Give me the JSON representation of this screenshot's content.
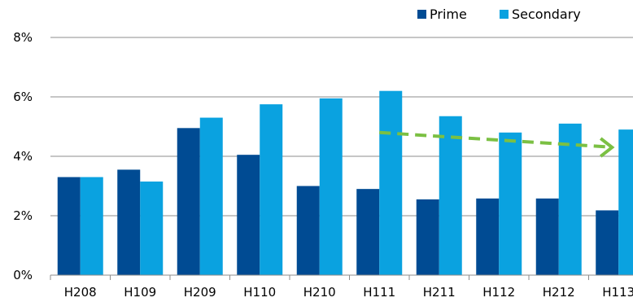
{
  "colors": {
    "prime": "#004B93",
    "secondary": "#0AA2E0",
    "trend_arrow": "#7BC043",
    "grid": "#8C8C8C"
  },
  "chart_data": {
    "type": "bar",
    "title": "",
    "xlabel": "",
    "ylabel": "",
    "categories": [
      "H208",
      "H109",
      "H209",
      "H110",
      "H210",
      "H111",
      "H211",
      "H112",
      "H212",
      "H113"
    ],
    "series": [
      {
        "name": "Prime",
        "values": [
          3.3,
          3.55,
          4.95,
          4.05,
          3.0,
          2.9,
          2.55,
          2.58,
          2.58,
          2.18
        ]
      },
      {
        "name": "Secondary",
        "values": [
          3.3,
          3.15,
          5.3,
          5.75,
          5.95,
          6.2,
          5.35,
          4.8,
          5.1,
          4.9
        ]
      }
    ],
    "ylim": [
      0,
      8
    ],
    "yticks": [
      0,
      2,
      4,
      6,
      8
    ],
    "ytick_labels": [
      "0%",
      "2%",
      "4%",
      "6%",
      "8%"
    ],
    "grid": true,
    "legend_position": "top-right",
    "annotations": [
      {
        "type": "dashed-arrow",
        "from": {
          "category": "H111",
          "value": 4.8
        },
        "to": {
          "category": "H113",
          "value": 4.3
        }
      }
    ]
  }
}
